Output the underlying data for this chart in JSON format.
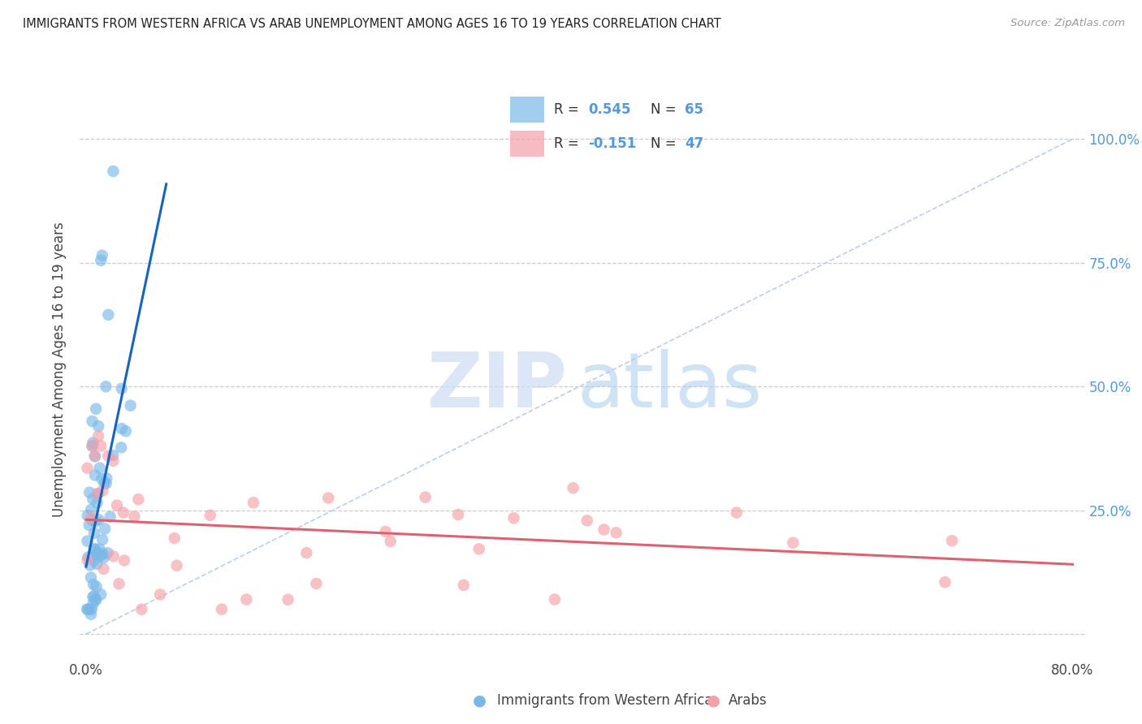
{
  "title": "IMMIGRANTS FROM WESTERN AFRICA VS ARAB UNEMPLOYMENT AMONG AGES 16 TO 19 YEARS CORRELATION CHART",
  "source": "Source: ZipAtlas.com",
  "ylabel": "Unemployment Among Ages 16 to 19 years",
  "xlim": [
    -0.005,
    0.81
  ],
  "ylim": [
    -0.05,
    1.12
  ],
  "xtick_vals": [
    0.0,
    0.1,
    0.2,
    0.3,
    0.4,
    0.5,
    0.6,
    0.7,
    0.8
  ],
  "xtick_labels": [
    "0.0%",
    "",
    "",
    "",
    "",
    "",
    "",
    "",
    "80.0%"
  ],
  "ytick_vals": [
    0.0,
    0.25,
    0.5,
    0.75,
    1.0
  ],
  "ytick_labels_right": [
    "",
    "25.0%",
    "50.0%",
    "75.0%",
    "100.0%"
  ],
  "legend1_R": "0.545",
  "legend1_N": "65",
  "legend2_R": "-0.151",
  "legend2_N": "47",
  "color_blue": "#7ab8e8",
  "color_pink": "#f4a0a8",
  "color_trend_blue": "#1565c0",
  "color_trend_pink": "#e06070",
  "color_dash": "#b0c8e0",
  "color_grid": "#cccccc",
  "color_bg": "#ffffff",
  "color_title": "#222222",
  "color_source": "#999999",
  "color_axis_val": "#5599dd",
  "color_watermark_zip": "#ccddf5",
  "color_watermark_atlas": "#aaccee",
  "watermark_zip": "ZIP",
  "watermark_atlas": "atlas"
}
